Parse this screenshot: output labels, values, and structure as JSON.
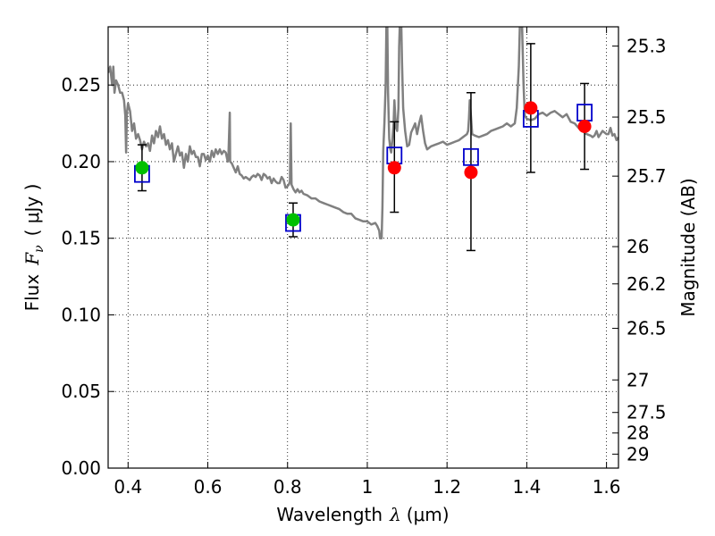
{
  "chart_data": {
    "type": "scatter",
    "xlabel_prefix": "Wavelength",
    "xlabel_symbol": "λ",
    "xlabel_unit": "(μm)",
    "ylabel_prefix": "Flux",
    "ylabel_symbol": "F",
    "ylabel_sub": "ν",
    "ylabel_unit": "( μJy )",
    "y2label": "Magnitude (AB)",
    "xlim": [
      0.35,
      1.63
    ],
    "ylim": [
      0.0,
      0.288
    ],
    "grid": true,
    "x_ticks": [
      0.4,
      0.6,
      0.8,
      1.0,
      1.2,
      1.4,
      1.6
    ],
    "x_tick_labels": [
      "0.4",
      "0.6",
      "0.8",
      "1",
      "1.2",
      "1.4",
      "1.6"
    ],
    "y_ticks": [
      0.0,
      0.05,
      0.1,
      0.15,
      0.2,
      0.25
    ],
    "y_tick_labels": [
      "0.00",
      "0.05",
      "0.10",
      "0.15",
      "0.20",
      "0.25"
    ],
    "mag_ticks": [
      {
        "mag": 25.3,
        "label": "25.3"
      },
      {
        "mag": 25.5,
        "label": "25.5"
      },
      {
        "mag": 25.7,
        "label": "25.7"
      },
      {
        "mag": 26.0,
        "label": "26"
      },
      {
        "mag": 26.2,
        "label": "26.2"
      },
      {
        "mag": 26.5,
        "label": "26.5"
      },
      {
        "mag": 27.0,
        "label": "27"
      },
      {
        "mag": 27.5,
        "label": "27.5"
      },
      {
        "mag": 28.0,
        "label": "28"
      },
      {
        "mag": 29.0,
        "label": "29"
      }
    ],
    "colors": {
      "spectrum": "#808080",
      "model_box": "#0000cc",
      "green": "#00c000",
      "red": "#ff0000",
      "errorbar": "#000000",
      "grid": "#000000"
    },
    "model_points": [
      {
        "x": 0.435,
        "y": 0.192
      },
      {
        "x": 0.814,
        "y": 0.16
      },
      {
        "x": 1.068,
        "y": 0.204
      },
      {
        "x": 1.26,
        "y": 0.203
      },
      {
        "x": 1.41,
        "y": 0.228
      },
      {
        "x": 1.545,
        "y": 0.232
      }
    ],
    "observed_points": [
      {
        "x": 0.435,
        "y": 0.196,
        "yerr_low": 0.181,
        "yerr_high": 0.211,
        "color": "green"
      },
      {
        "x": 0.814,
        "y": 0.162,
        "yerr_low": 0.151,
        "yerr_high": 0.173,
        "color": "green"
      },
      {
        "x": 1.068,
        "y": 0.196,
        "yerr_low": 0.167,
        "yerr_high": 0.226,
        "color": "red"
      },
      {
        "x": 1.26,
        "y": 0.193,
        "yerr_low": 0.142,
        "yerr_high": 0.245,
        "color": "red"
      },
      {
        "x": 1.41,
        "y": 0.235,
        "yerr_low": 0.193,
        "yerr_high": 0.277,
        "color": "red"
      },
      {
        "x": 1.545,
        "y": 0.223,
        "yerr_low": 0.195,
        "yerr_high": 0.251,
        "color": "red"
      }
    ],
    "spectrum": [
      [
        0.35,
        0.258
      ],
      [
        0.355,
        0.262
      ],
      [
        0.36,
        0.25
      ],
      [
        0.363,
        0.262
      ],
      [
        0.366,
        0.245
      ],
      [
        0.37,
        0.253
      ],
      [
        0.375,
        0.25
      ],
      [
        0.38,
        0.245
      ],
      [
        0.385,
        0.245
      ],
      [
        0.39,
        0.24
      ],
      [
        0.393,
        0.23
      ],
      [
        0.395,
        0.206
      ],
      [
        0.397,
        0.232
      ],
      [
        0.4,
        0.238
      ],
      [
        0.405,
        0.233
      ],
      [
        0.41,
        0.22
      ],
      [
        0.415,
        0.225
      ],
      [
        0.42,
        0.215
      ],
      [
        0.425,
        0.218
      ],
      [
        0.43,
        0.214
      ],
      [
        0.435,
        0.208
      ],
      [
        0.44,
        0.213
      ],
      [
        0.445,
        0.21
      ],
      [
        0.45,
        0.212
      ],
      [
        0.455,
        0.207
      ],
      [
        0.46,
        0.217
      ],
      [
        0.465,
        0.212
      ],
      [
        0.47,
        0.22
      ],
      [
        0.475,
        0.216
      ],
      [
        0.48,
        0.223
      ],
      [
        0.485,
        0.215
      ],
      [
        0.49,
        0.218
      ],
      [
        0.495,
        0.211
      ],
      [
        0.5,
        0.214
      ],
      [
        0.505,
        0.208
      ],
      [
        0.51,
        0.212
      ],
      [
        0.515,
        0.2
      ],
      [
        0.52,
        0.205
      ],
      [
        0.525,
        0.21
      ],
      [
        0.53,
        0.204
      ],
      [
        0.535,
        0.206
      ],
      [
        0.54,
        0.196
      ],
      [
        0.545,
        0.205
      ],
      [
        0.55,
        0.2
      ],
      [
        0.555,
        0.21
      ],
      [
        0.56,
        0.205
      ],
      [
        0.565,
        0.207
      ],
      [
        0.57,
        0.203
      ],
      [
        0.575,
        0.203
      ],
      [
        0.58,
        0.197
      ],
      [
        0.585,
        0.205
      ],
      [
        0.59,
        0.205
      ],
      [
        0.595,
        0.201
      ],
      [
        0.6,
        0.204
      ],
      [
        0.605,
        0.2
      ],
      [
        0.61,
        0.207
      ],
      [
        0.615,
        0.203
      ],
      [
        0.62,
        0.208
      ],
      [
        0.625,
        0.205
      ],
      [
        0.63,
        0.208
      ],
      [
        0.635,
        0.205
      ],
      [
        0.64,
        0.207
      ],
      [
        0.645,
        0.206
      ],
      [
        0.65,
        0.2
      ],
      [
        0.652,
        0.206
      ],
      [
        0.655,
        0.232
      ],
      [
        0.656,
        0.2
      ],
      [
        0.66,
        0.199
      ],
      [
        0.665,
        0.196
      ],
      [
        0.67,
        0.193
      ],
      [
        0.675,
        0.197
      ],
      [
        0.68,
        0.192
      ],
      [
        0.685,
        0.191
      ],
      [
        0.69,
        0.189
      ],
      [
        0.695,
        0.19
      ],
      [
        0.7,
        0.189
      ],
      [
        0.705,
        0.188
      ],
      [
        0.71,
        0.19
      ],
      [
        0.715,
        0.191
      ],
      [
        0.72,
        0.19
      ],
      [
        0.725,
        0.192
      ],
      [
        0.73,
        0.191
      ],
      [
        0.735,
        0.188
      ],
      [
        0.74,
        0.192
      ],
      [
        0.745,
        0.191
      ],
      [
        0.75,
        0.189
      ],
      [
        0.755,
        0.19
      ],
      [
        0.76,
        0.186
      ],
      [
        0.765,
        0.189
      ],
      [
        0.77,
        0.187
      ],
      [
        0.775,
        0.186
      ],
      [
        0.78,
        0.186
      ],
      [
        0.785,
        0.19
      ],
      [
        0.79,
        0.188
      ],
      [
        0.795,
        0.183
      ],
      [
        0.8,
        0.184
      ],
      [
        0.803,
        0.185
      ],
      [
        0.806,
        0.187
      ],
      [
        0.808,
        0.225
      ],
      [
        0.81,
        0.185
      ],
      [
        0.815,
        0.182
      ],
      [
        0.82,
        0.18
      ],
      [
        0.825,
        0.182
      ],
      [
        0.83,
        0.18
      ],
      [
        0.835,
        0.181
      ],
      [
        0.84,
        0.179
      ],
      [
        0.85,
        0.178
      ],
      [
        0.86,
        0.176
      ],
      [
        0.87,
        0.176
      ],
      [
        0.88,
        0.174
      ],
      [
        0.89,
        0.173
      ],
      [
        0.9,
        0.172
      ],
      [
        0.91,
        0.171
      ],
      [
        0.92,
        0.17
      ],
      [
        0.93,
        0.169
      ],
      [
        0.94,
        0.167
      ],
      [
        0.95,
        0.166
      ],
      [
        0.96,
        0.166
      ],
      [
        0.97,
        0.163
      ],
      [
        0.98,
        0.162
      ],
      [
        0.99,
        0.161
      ],
      [
        1.0,
        0.161
      ],
      [
        1.01,
        0.159
      ],
      [
        1.02,
        0.16
      ],
      [
        1.025,
        0.158
      ],
      [
        1.03,
        0.155
      ],
      [
        1.032,
        0.15
      ],
      [
        1.036,
        0.15
      ],
      [
        1.038,
        0.17
      ],
      [
        1.04,
        0.207
      ],
      [
        1.043,
        0.225
      ],
      [
        1.046,
        0.25
      ],
      [
        1.048,
        0.292
      ],
      [
        1.05,
        0.292
      ],
      [
        1.052,
        0.245
      ],
      [
        1.055,
        0.215
      ],
      [
        1.058,
        0.208
      ],
      [
        1.06,
        0.206
      ],
      [
        1.063,
        0.215
      ],
      [
        1.066,
        0.225
      ],
      [
        1.068,
        0.24
      ],
      [
        1.07,
        0.23
      ],
      [
        1.072,
        0.222
      ],
      [
        1.075,
        0.22
      ],
      [
        1.078,
        0.235
      ],
      [
        1.08,
        0.275
      ],
      [
        1.082,
        0.292
      ],
      [
        1.085,
        0.292
      ],
      [
        1.087,
        0.265
      ],
      [
        1.09,
        0.235
      ],
      [
        1.095,
        0.22
      ],
      [
        1.1,
        0.21
      ],
      [
        1.105,
        0.211
      ],
      [
        1.11,
        0.219
      ],
      [
        1.115,
        0.222
      ],
      [
        1.12,
        0.225
      ],
      [
        1.125,
        0.218
      ],
      [
        1.13,
        0.225
      ],
      [
        1.135,
        0.23
      ],
      [
        1.14,
        0.22
      ],
      [
        1.145,
        0.212
      ],
      [
        1.15,
        0.208
      ],
      [
        1.155,
        0.209
      ],
      [
        1.16,
        0.21
      ],
      [
        1.17,
        0.211
      ],
      [
        1.18,
        0.212
      ],
      [
        1.19,
        0.213
      ],
      [
        1.2,
        0.211
      ],
      [
        1.21,
        0.212
      ],
      [
        1.22,
        0.213
      ],
      [
        1.23,
        0.214
      ],
      [
        1.24,
        0.216
      ],
      [
        1.25,
        0.218
      ],
      [
        1.253,
        0.22
      ],
      [
        1.255,
        0.228
      ],
      [
        1.257,
        0.24
      ],
      [
        1.26,
        0.23
      ],
      [
        1.263,
        0.218
      ],
      [
        1.27,
        0.217
      ],
      [
        1.28,
        0.216
      ],
      [
        1.29,
        0.217
      ],
      [
        1.3,
        0.218
      ],
      [
        1.31,
        0.22
      ],
      [
        1.32,
        0.221
      ],
      [
        1.33,
        0.222
      ],
      [
        1.34,
        0.223
      ],
      [
        1.35,
        0.225
      ],
      [
        1.36,
        0.223
      ],
      [
        1.37,
        0.225
      ],
      [
        1.375,
        0.235
      ],
      [
        1.38,
        0.262
      ],
      [
        1.383,
        0.292
      ],
      [
        1.388,
        0.292
      ],
      [
        1.392,
        0.25
      ],
      [
        1.395,
        0.23
      ],
      [
        1.4,
        0.228
      ],
      [
        1.41,
        0.227
      ],
      [
        1.42,
        0.228
      ],
      [
        1.43,
        0.231
      ],
      [
        1.44,
        0.232
      ],
      [
        1.45,
        0.23
      ],
      [
        1.46,
        0.232
      ],
      [
        1.47,
        0.233
      ],
      [
        1.48,
        0.231
      ],
      [
        1.49,
        0.229
      ],
      [
        1.5,
        0.231
      ],
      [
        1.51,
        0.226
      ],
      [
        1.52,
        0.225
      ],
      [
        1.53,
        0.222
      ],
      [
        1.54,
        0.22
      ],
      [
        1.55,
        0.218
      ],
      [
        1.56,
        0.217
      ],
      [
        1.565,
        0.216
      ],
      [
        1.57,
        0.217
      ],
      [
        1.575,
        0.22
      ],
      [
        1.58,
        0.216
      ],
      [
        1.585,
        0.218
      ],
      [
        1.59,
        0.22
      ],
      [
        1.595,
        0.219
      ],
      [
        1.6,
        0.218
      ],
      [
        1.605,
        0.218
      ],
      [
        1.61,
        0.222
      ],
      [
        1.615,
        0.217
      ],
      [
        1.62,
        0.218
      ],
      [
        1.625,
        0.214
      ],
      [
        1.63,
        0.216
      ]
    ]
  }
}
